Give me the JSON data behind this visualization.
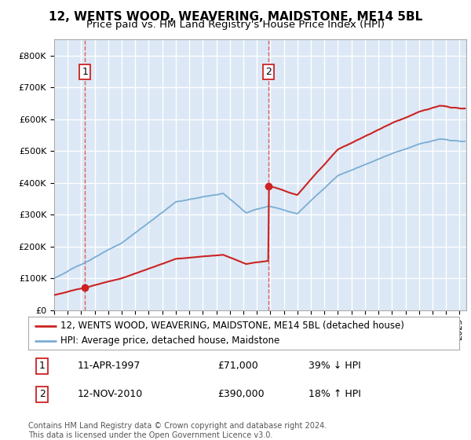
{
  "title": "12, WENTS WOOD, WEAVERING, MAIDSTONE, ME14 5BL",
  "subtitle": "Price paid vs. HM Land Registry's House Price Index (HPI)",
  "ylim": [
    0,
    850000
  ],
  "yticks": [
    0,
    100000,
    200000,
    300000,
    400000,
    500000,
    600000,
    700000,
    800000
  ],
  "ytick_labels": [
    "£0",
    "£100K",
    "£200K",
    "£300K",
    "£400K",
    "£500K",
    "£600K",
    "£700K",
    "£800K"
  ],
  "xlim_start": 1995.0,
  "xlim_end": 2025.5,
  "plot_bg_color": "#dce8f5",
  "fig_bg_color": "#ffffff",
  "grid_color": "#ffffff",
  "sale1_date": 1997.28,
  "sale1_price": 71000,
  "sale2_date": 2010.87,
  "sale2_price": 390000,
  "hpi_color": "#7aadd4",
  "price_color": "#cc2222",
  "dashed_color": "#dd4444",
  "legend_label1": "12, WENTS WOOD, WEAVERING, MAIDSTONE, ME14 5BL (detached house)",
  "legend_label2": "HPI: Average price, detached house, Maidstone",
  "footer": "Contains HM Land Registry data © Crown copyright and database right 2024.\nThis data is licensed under the Open Government Licence v3.0.",
  "title_fontsize": 11,
  "subtitle_fontsize": 9.5,
  "tick_fontsize": 8,
  "legend_fontsize": 8.5,
  "annot_fontsize": 9
}
